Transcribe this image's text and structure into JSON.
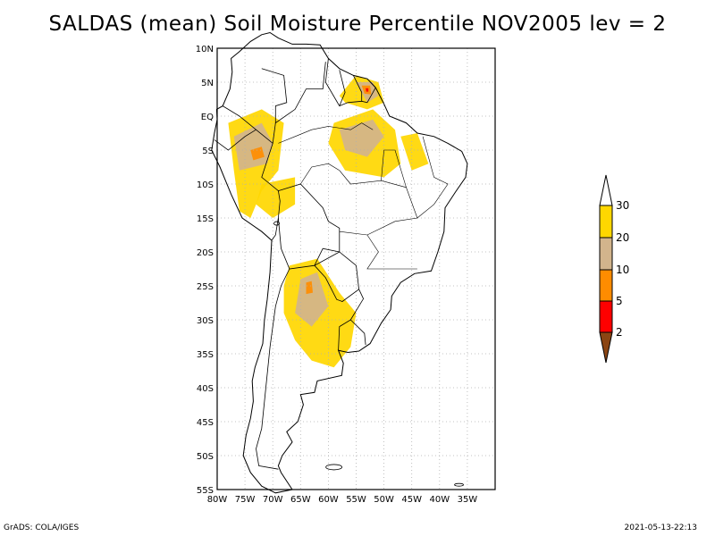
{
  "title": "SALDAS (mean) Soil Moisture Percentile NOV2005 lev = 2",
  "map": {
    "lon_range": [
      -80,
      -30
    ],
    "lat_range": [
      -55,
      10
    ],
    "lon_ticks": [
      "80W",
      "75W",
      "70W",
      "65W",
      "60W",
      "55W",
      "50W",
      "45W",
      "40W",
      "35W"
    ],
    "lat_ticks": [
      "10N",
      "5N",
      "EQ",
      "5S",
      "10S",
      "15S",
      "20S",
      "25S",
      "30S",
      "35S",
      "40S",
      "45S",
      "50S",
      "55S"
    ]
  },
  "legend": {
    "labels": [
      "30",
      "20",
      "10",
      "5",
      "2"
    ],
    "colors": {
      "above_30": "#ffffff",
      "band_20_30": "#ffd700",
      "band_10_20": "#d2b48c",
      "band_5_10": "#ff8c00",
      "band_2_5": "#ff0000",
      "below_2": "#8b4513"
    }
  },
  "footer": {
    "left": "GrADS: COLA/IGES",
    "right": "2021-05-13-22:13"
  }
}
